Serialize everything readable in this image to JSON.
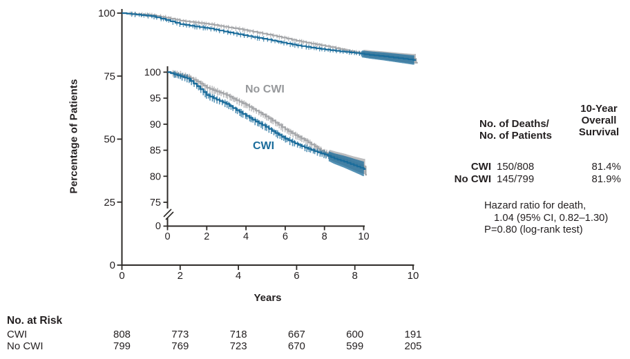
{
  "colors": {
    "cwi": "#1b6c9b",
    "no_cwi": "#a5a7aa",
    "no_cwi_label": "#97999c",
    "axis": "#2d2a27",
    "text": "#231f20"
  },
  "chart_data": {
    "type": "line",
    "subtype": "kaplan-meier-survival",
    "title": "",
    "xlabel": "Years",
    "ylabel": "Percentage of Patients",
    "main_axis": {
      "xlim": [
        0,
        10
      ],
      "ylim": [
        0,
        100
      ],
      "x_ticks": [
        0,
        2,
        4,
        6,
        8,
        10
      ],
      "y_ticks": [
        0,
        25,
        50,
        75,
        100
      ],
      "grid": false
    },
    "inset_axis": {
      "xlim": [
        0,
        10
      ],
      "ylim_shown": [
        75,
        100
      ],
      "x_ticks": [
        0,
        2,
        4,
        6,
        8,
        10
      ],
      "y_ticks": [
        75,
        80,
        85,
        90,
        95,
        100
      ],
      "axis_break_to_zero": true,
      "zero_label": "0"
    },
    "series": [
      {
        "name": "No CWI",
        "color_key": "no_cwi",
        "points": [
          [
            0,
            100
          ],
          [
            0.5,
            99.6
          ],
          [
            1,
            99.2
          ],
          [
            1.5,
            98.2
          ],
          [
            2,
            97.0
          ],
          [
            2.5,
            96.3
          ],
          [
            3,
            95.6
          ],
          [
            3.5,
            94.6
          ],
          [
            4,
            93.7
          ],
          [
            4.5,
            92.6
          ],
          [
            5,
            91.5
          ],
          [
            5.5,
            90.3
          ],
          [
            6,
            89.0
          ],
          [
            6.5,
            87.9
          ],
          [
            7,
            86.9
          ],
          [
            7.5,
            85.7
          ],
          [
            8,
            84.5
          ],
          [
            8.5,
            83.8
          ],
          [
            9,
            83.2
          ],
          [
            9.5,
            82.5
          ],
          [
            10,
            81.9
          ]
        ]
      },
      {
        "name": "CWI",
        "color_key": "cwi",
        "points": [
          [
            0,
            100
          ],
          [
            0.5,
            99.4
          ],
          [
            1,
            98.8
          ],
          [
            1.5,
            97.3
          ],
          [
            2,
            95.6
          ],
          [
            2.5,
            94.7
          ],
          [
            3,
            93.9
          ],
          [
            3.5,
            92.7
          ],
          [
            4,
            91.6
          ],
          [
            4.5,
            90.5
          ],
          [
            5,
            89.5
          ],
          [
            5.5,
            88.3
          ],
          [
            6,
            87.2
          ],
          [
            6.5,
            86.3
          ],
          [
            7,
            85.5
          ],
          [
            7.5,
            84.8
          ],
          [
            8,
            84.2
          ],
          [
            8.5,
            83.4
          ],
          [
            9,
            82.8
          ],
          [
            9.5,
            82.1
          ],
          [
            10,
            81.4
          ]
        ]
      }
    ],
    "censoring_marks": true,
    "legend_position": "inset-labels"
  },
  "inset_labels": {
    "no_cwi": "No CWI",
    "cwi": "CWI"
  },
  "summary": {
    "col_deaths_header": [
      "No. of Deaths/",
      "No. of Patients"
    ],
    "col_survival_header": [
      "10-Year",
      "Overall",
      "Survival"
    ],
    "rows": [
      {
        "label": "CWI",
        "deaths": "150/808",
        "survival": "81.4%"
      },
      {
        "label": "No CWI",
        "deaths": "145/799",
        "survival": "81.9%"
      }
    ],
    "hazard_line1": "Hazard ratio for death,",
    "hazard_line2": "1.04 (95% CI, 0.82–1.30)",
    "hazard_line3": "P=0.80 (log-rank test)"
  },
  "risk_table": {
    "title": "No. at Risk",
    "rows": [
      {
        "label": "CWI",
        "values": [
          "808",
          "773",
          "718",
          "667",
          "600",
          "191"
        ]
      },
      {
        "label": "No CWI",
        "values": [
          "799",
          "769",
          "723",
          "670",
          "599",
          "205"
        ]
      }
    ]
  }
}
